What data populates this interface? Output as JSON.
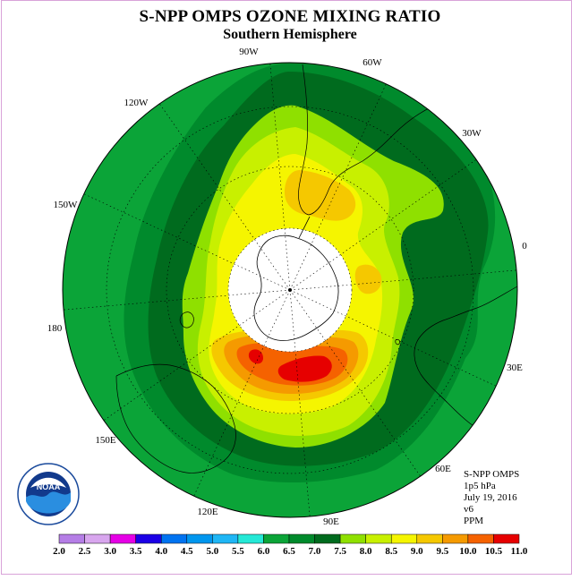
{
  "title": "S-NPP OMPS OZONE MIXING RATIO",
  "subtitle": "Southern Hemisphere",
  "logo": {
    "name": "NOAA",
    "ring_text": "NATIONAL OCEANIC AND ATMOSPHERIC ADMINISTRATION · U.S. DEPARTMENT OF COMMERCE"
  },
  "info": {
    "instrument": "S-NPP OMPS",
    "level": "1p5 hPa",
    "date": "July 19, 2016",
    "version": "v6",
    "units": "PPM"
  },
  "longitude_labels": [
    {
      "label": "90W",
      "lon": -90
    },
    {
      "label": "60W",
      "lon": -60
    },
    {
      "label": "30W",
      "lon": -30
    },
    {
      "label": "0",
      "lon": 0
    },
    {
      "label": "30E",
      "lon": 30
    },
    {
      "label": "60E",
      "lon": 60
    },
    {
      "label": "90E",
      "lon": 90
    },
    {
      "label": "120E",
      "lon": 120
    },
    {
      "label": "150E",
      "lon": 150
    },
    {
      "label": "180",
      "lon": 180
    },
    {
      "label": "150W",
      "lon": -150
    },
    {
      "label": "120W",
      "lon": -120
    }
  ],
  "colorbar": {
    "ticks": [
      "2.0",
      "2.5",
      "3.0",
      "3.5",
      "4.0",
      "4.5",
      "5.0",
      "5.5",
      "6.0",
      "6.5",
      "7.0",
      "7.5",
      "8.0",
      "8.5",
      "9.0",
      "9.5",
      "10.0",
      "10.5",
      "11.0"
    ],
    "colors": [
      "#b57ee6",
      "#d8a6ee",
      "#e600e6",
      "#1c00e6",
      "#0073f0",
      "#0096ee",
      "#1fb6f5",
      "#25e8d6",
      "#0ba438",
      "#008a2c",
      "#006b1e",
      "#8fe000",
      "#c8f000",
      "#f5f500",
      "#f5c800",
      "#f59a00",
      "#f56200",
      "#e60000",
      "#8a5a3a"
    ]
  },
  "chart_data": {
    "type": "heatmap",
    "projection": "south polar stereographic",
    "variable": "Ozone mixing ratio",
    "units": "PPM",
    "pressure_level": "1p5 hPa",
    "date": "July 19, 2016",
    "color_levels": [
      2.0,
      2.5,
      3.0,
      3.5,
      4.0,
      4.5,
      5.0,
      5.5,
      6.0,
      6.5,
      7.0,
      7.5,
      8.0,
      8.5,
      9.0,
      9.5,
      10.0,
      10.5,
      11.0
    ],
    "observed_range": [
      6.5,
      10.5
    ],
    "polar_night_no_data": true
  }
}
